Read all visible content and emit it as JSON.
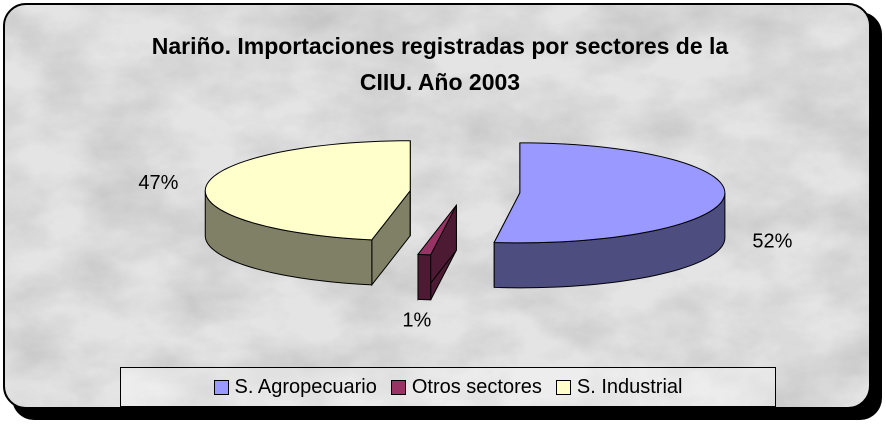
{
  "chart_data": {
    "type": "pie3d",
    "title": "Nariño. Importaciones registradas por sectores de la CIIU. Año 2003",
    "categories": [
      "S. Agropecuario",
      "Otros sectores",
      "S. Industrial"
    ],
    "values": [
      52,
      1,
      47
    ],
    "value_labels": [
      "52%",
      "1%",
      "47%"
    ],
    "colors": [
      "#9999ff",
      "#993366",
      "#ffffcc"
    ],
    "legend": "bottom"
  }
}
